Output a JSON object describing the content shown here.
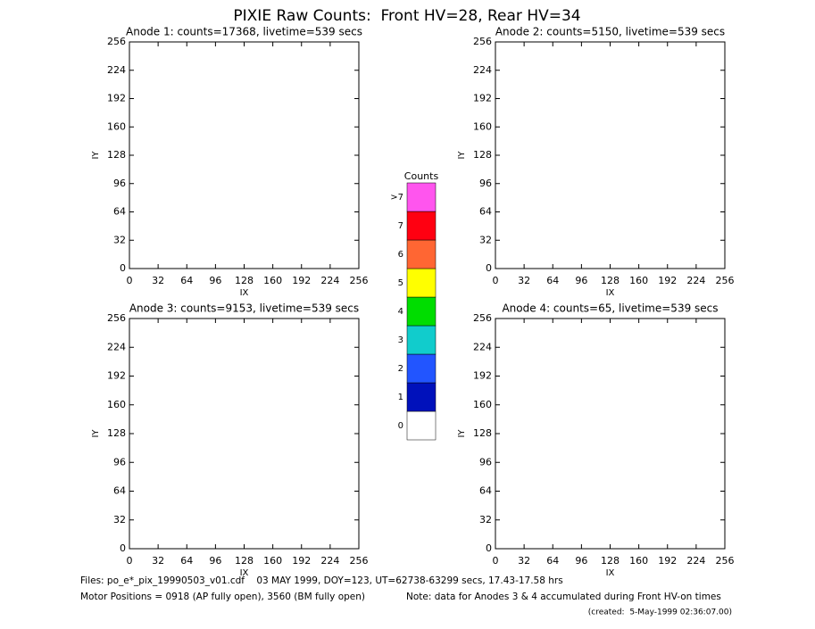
{
  "title": "PIXIE Raw Counts:  Front HV=28, Rear HV=34",
  "chart_data": [
    {
      "type": "heatmap",
      "title": "Anode 1: counts=17368, livetime=539 secs",
      "xlabel": "IX",
      "ylabel": "IY",
      "xlim": [
        0,
        256
      ],
      "ylim": [
        0,
        256
      ],
      "xticks": [
        0,
        32,
        64,
        96,
        128,
        160,
        192,
        224,
        256
      ],
      "yticks": [
        0,
        32,
        64,
        96,
        128,
        160,
        192,
        224,
        256
      ]
    },
    {
      "type": "heatmap",
      "title": "Anode 2: counts=5150, livetime=539 secs",
      "xlabel": "IX",
      "ylabel": "IY",
      "xlim": [
        0,
        256
      ],
      "ylim": [
        0,
        256
      ],
      "xticks": [
        0,
        32,
        64,
        96,
        128,
        160,
        192,
        224,
        256
      ],
      "yticks": [
        0,
        32,
        64,
        96,
        128,
        160,
        192,
        224,
        256
      ]
    },
    {
      "type": "heatmap",
      "title": "Anode 3: counts=9153, livetime=539 secs",
      "xlabel": "IX",
      "ylabel": "IY",
      "xlim": [
        0,
        256
      ],
      "ylim": [
        0,
        256
      ],
      "xticks": [
        0,
        32,
        64,
        96,
        128,
        160,
        192,
        224,
        256
      ],
      "yticks": [
        0,
        32,
        64,
        96,
        128,
        160,
        192,
        224,
        256
      ]
    },
    {
      "type": "heatmap",
      "title": "Anode 4: counts=65, livetime=539 secs",
      "xlabel": "IX",
      "ylabel": "IY",
      "xlim": [
        0,
        256
      ],
      "ylim": [
        0,
        256
      ],
      "xticks": [
        0,
        32,
        64,
        96,
        128,
        160,
        192,
        224,
        256
      ],
      "yticks": [
        0,
        32,
        64,
        96,
        128,
        160,
        192,
        224,
        256
      ]
    },
    {
      "type": "colorbar",
      "title": "Counts",
      "categories": [
        "0",
        "1",
        "2",
        "3",
        "4",
        "5",
        "6",
        "7",
        ">7"
      ],
      "colors": [
        "#ffffff",
        "#0011bb",
        "#2255ff",
        "#11cccc",
        "#00dd00",
        "#ffff00",
        "#ff6633",
        "#ff0011",
        "#ff55ee"
      ]
    }
  ],
  "footer": {
    "files": "Files: po_e*_pix_19990503_v01.cdf    03 MAY 1999, DOY=123, UT=62738-63299 secs, 17.43-17.58 hrs",
    "motor": "Motor Positions = 0918 (AP fully open), 3560 (BM fully open)",
    "note": "Note: data for Anodes 3 & 4 accumulated during Front HV-on times",
    "created": "(created:  5-May-1999 02:36:07.00)"
  }
}
